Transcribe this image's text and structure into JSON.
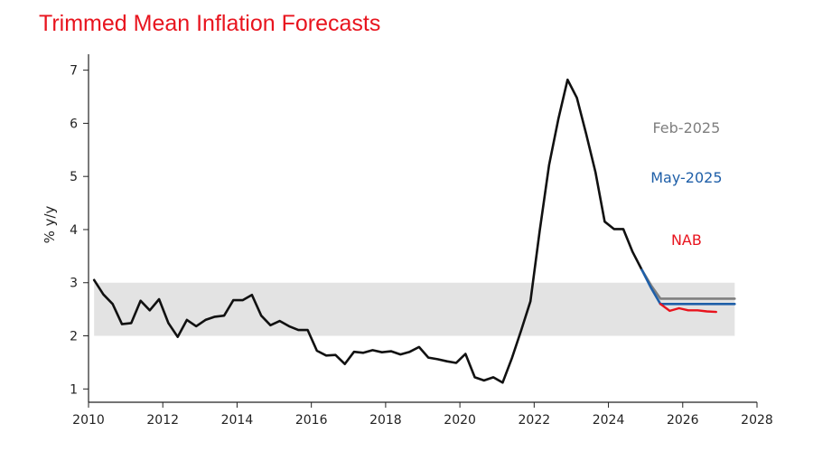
{
  "chart_data": {
    "type": "line",
    "title": "Trimmed Mean Inflation Forecasts",
    "xlabel": "",
    "ylabel": "% y/y",
    "xlim": [
      2010,
      2028
    ],
    "ylim": [
      0.75,
      7.3
    ],
    "x_ticks": [
      2010,
      2012,
      2014,
      2016,
      2018,
      2020,
      2022,
      2024,
      2026,
      2028
    ],
    "y_ticks": [
      1,
      2,
      3,
      4,
      5,
      6,
      7
    ],
    "grid": false,
    "target_band": {
      "from": 2,
      "to": 3,
      "x_start": 2010.15,
      "x_end": 2027.4,
      "color": "#e3e3e3"
    },
    "series": [
      {
        "name": "",
        "color": "#111111",
        "x": [
          2010.15,
          2010.4,
          2010.65,
          2010.9,
          2011.15,
          2011.4,
          2011.65,
          2011.9,
          2012.15,
          2012.4,
          2012.65,
          2012.9,
          2013.15,
          2013.4,
          2013.65,
          2013.9,
          2014.15,
          2014.4,
          2014.65,
          2014.9,
          2015.15,
          2015.4,
          2015.65,
          2015.9,
          2016.15,
          2016.4,
          2016.65,
          2016.9,
          2017.15,
          2017.4,
          2017.65,
          2017.9,
          2018.15,
          2018.4,
          2018.65,
          2018.9,
          2019.15,
          2019.4,
          2019.65,
          2019.9,
          2020.15,
          2020.4,
          2020.65,
          2020.9,
          2021.15,
          2021.4,
          2021.65,
          2021.9,
          2022.15,
          2022.4,
          2022.65,
          2022.9,
          2023.15,
          2023.4,
          2023.65,
          2023.9,
          2024.15,
          2024.4,
          2024.65,
          2024.9
        ],
        "values": [
          3.05,
          2.78,
          2.6,
          2.22,
          2.24,
          2.66,
          2.48,
          2.69,
          2.24,
          1.98,
          2.3,
          2.18,
          2.3,
          2.36,
          2.38,
          2.67,
          2.67,
          2.77,
          2.38,
          2.2,
          2.28,
          2.18,
          2.11,
          2.11,
          1.72,
          1.63,
          1.64,
          1.47,
          1.7,
          1.68,
          1.73,
          1.69,
          1.71,
          1.65,
          1.7,
          1.79,
          1.59,
          1.56,
          1.52,
          1.49,
          1.66,
          1.22,
          1.16,
          1.22,
          1.12,
          1.58,
          2.1,
          2.65,
          3.98,
          5.21,
          6.08,
          6.82,
          6.48,
          5.8,
          5.08,
          4.15,
          4.01,
          4.01,
          3.58,
          3.24
        ]
      },
      {
        "name": "Feb-2025",
        "color": "#7f7f7f",
        "x": [
          2024.9,
          2025.15,
          2025.4,
          2025.65,
          2025.9,
          2026.15,
          2026.4,
          2026.65,
          2026.9,
          2027.15,
          2027.4
        ],
        "values": [
          3.24,
          2.95,
          2.7,
          2.7,
          2.7,
          2.7,
          2.7,
          2.7,
          2.7,
          2.7,
          2.7
        ]
      },
      {
        "name": "May-2025",
        "color": "#1f5fa8",
        "x": [
          2024.9,
          2025.15,
          2025.4,
          2025.65,
          2025.9,
          2026.15,
          2026.4,
          2026.65,
          2026.9,
          2027.15,
          2027.4
        ],
        "values": [
          3.24,
          2.9,
          2.6,
          2.6,
          2.6,
          2.6,
          2.6,
          2.6,
          2.6,
          2.6,
          2.6
        ]
      },
      {
        "name": "NAB",
        "color": "#e8141e",
        "x": [
          2025.4,
          2025.65,
          2025.9,
          2026.15,
          2026.4,
          2026.65,
          2026.9
        ],
        "values": [
          2.6,
          2.47,
          2.52,
          2.48,
          2.48,
          2.46,
          2.45
        ]
      }
    ],
    "legend": [
      {
        "label": "Feb-2025",
        "color": "#7f7f7f",
        "x": 2026.1,
        "y": 5.82
      },
      {
        "label": "May-2025",
        "color": "#1f5fa8",
        "x": 2026.1,
        "y": 4.88
      },
      {
        "label": "NAB",
        "color": "#e8141e",
        "x": 2026.1,
        "y": 3.71
      }
    ]
  }
}
